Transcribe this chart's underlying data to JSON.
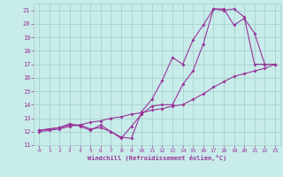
{
  "xlabel": "Windchill (Refroidissement éolien,°C)",
  "xlim": [
    -0.5,
    23.5
  ],
  "ylim": [
    11,
    21.5
  ],
  "yticks": [
    11,
    12,
    13,
    14,
    15,
    16,
    17,
    18,
    19,
    20,
    21
  ],
  "xticks": [
    0,
    1,
    2,
    3,
    4,
    5,
    6,
    7,
    8,
    9,
    10,
    11,
    12,
    13,
    14,
    15,
    16,
    17,
    18,
    19,
    20,
    21,
    22,
    23
  ],
  "bg_color": "#c8ecea",
  "grid_color": "#a0ccca",
  "line_color": "#993399",
  "series": [
    {
      "x": [
        0,
        1,
        2,
        3,
        4,
        5,
        6,
        7,
        8,
        9,
        10,
        11,
        12,
        13,
        14,
        15,
        16,
        17,
        18,
        19,
        20,
        21,
        22,
        23
      ],
      "y": [
        12.1,
        12.2,
        12.3,
        12.5,
        12.5,
        12.2,
        12.3,
        12.0,
        11.5,
        12.4,
        13.3,
        13.9,
        14.0,
        14.0,
        15.5,
        16.5,
        18.5,
        21.1,
        21.1,
        19.9,
        20.4,
        19.3,
        17.0,
        17.0
      ]
    },
    {
      "x": [
        0,
        1,
        2,
        3,
        4,
        5,
        6,
        7,
        8,
        9,
        10,
        11,
        12,
        13,
        14,
        15,
        16,
        17,
        18,
        19,
        20,
        21,
        22,
        23
      ],
      "y": [
        12.1,
        12.2,
        12.3,
        12.6,
        12.4,
        12.1,
        12.5,
        12.0,
        11.6,
        11.5,
        13.5,
        14.4,
        15.8,
        17.5,
        17.0,
        18.8,
        19.9,
        21.1,
        21.0,
        21.1,
        20.5,
        17.0,
        17.0,
        17.0
      ]
    },
    {
      "x": [
        0,
        1,
        2,
        3,
        4,
        5,
        6,
        7,
        8,
        9,
        10,
        11,
        12,
        13,
        14,
        15,
        16,
        17,
        18,
        19,
        20,
        21,
        22,
        23
      ],
      "y": [
        12.0,
        12.1,
        12.2,
        12.4,
        12.5,
        12.7,
        12.8,
        13.0,
        13.1,
        13.3,
        13.4,
        13.6,
        13.7,
        13.9,
        14.0,
        14.4,
        14.8,
        15.3,
        15.7,
        16.1,
        16.3,
        16.5,
        16.7,
        17.0
      ]
    }
  ]
}
